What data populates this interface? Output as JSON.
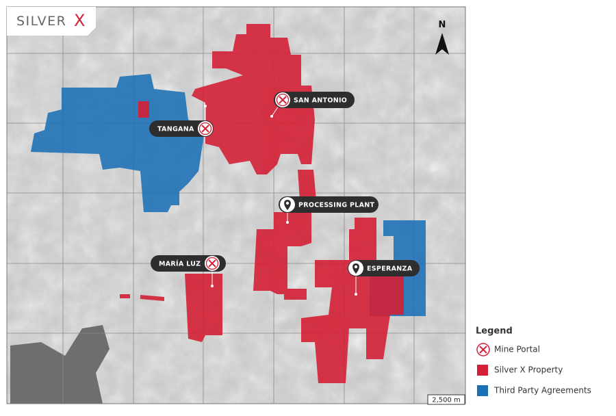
{
  "logo": {
    "text": "SILVER",
    "mark": "X"
  },
  "north": "N",
  "sites": [
    {
      "label": "SAN ANTONIO",
      "kind": "Mine Portal"
    },
    {
      "label": "TANGANA",
      "kind": "Mine Portal"
    },
    {
      "label": "PROCESSING PLANT",
      "kind": "Plant"
    },
    {
      "label": "MARÍA LUZ",
      "kind": "Mine Portal"
    },
    {
      "label": "ESPERANZA",
      "kind": "Plant"
    }
  ],
  "scale": "2,500 m",
  "legend": {
    "title": "Legend",
    "items": [
      "Mine Portal",
      "Silver X Property",
      "Third Party Agreements"
    ]
  }
}
